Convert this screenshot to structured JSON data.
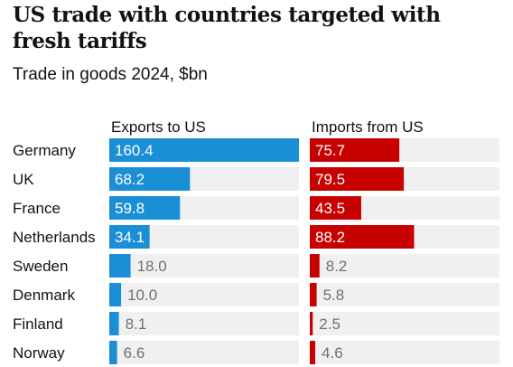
{
  "header": {
    "title": "US trade with countries targeted with fresh tariffs",
    "subtitle": "Trade in goods 2024, $bn"
  },
  "chart_data": {
    "type": "bar",
    "categories": [
      "Germany",
      "UK",
      "France",
      "Netherlands",
      "Sweden",
      "Denmark",
      "Finland",
      "Norway"
    ],
    "series": [
      {
        "name": "Exports to US",
        "values": [
          160.4,
          68.2,
          59.8,
          34.1,
          18.0,
          10.0,
          8.1,
          6.6
        ],
        "color": "#1a8fd6"
      },
      {
        "name": "Imports from US",
        "values": [
          75.7,
          79.5,
          43.5,
          88.2,
          8.2,
          5.8,
          2.5,
          4.6
        ],
        "color": "#c70000"
      }
    ],
    "title": "US trade with countries targeted with fresh tariffs",
    "subtitle": "Trade in goods 2024, $bn",
    "orientation": "horizontal",
    "xlim": [
      0,
      160.4
    ],
    "track_color": "#f0f0f0"
  }
}
